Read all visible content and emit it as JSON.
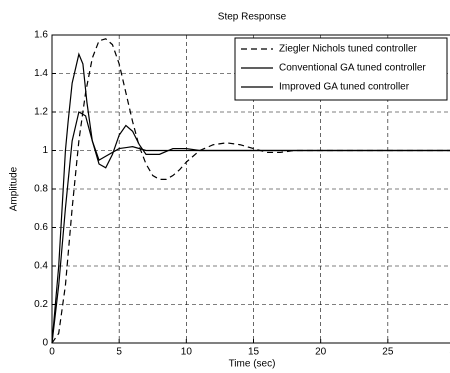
{
  "chart_data": {
    "type": "line",
    "title": "Step Response",
    "xlabel": "Time (sec)",
    "ylabel": "Amplitude",
    "xlim": [
      0,
      30
    ],
    "xticks": [
      0,
      5,
      10,
      15,
      20,
      25,
      30
    ],
    "ylim": [
      0,
      1.6
    ],
    "yticks": [
      0,
      0.2,
      0.4,
      0.6,
      0.8,
      1,
      1.2,
      1.4,
      1.6
    ],
    "grid": true,
    "legend": "upper right",
    "series": [
      {
        "name": "Ziegler Nichols tuned controller",
        "color": "#000000",
        "dash": "dashed",
        "x": [
          0,
          0.5,
          1,
          1.5,
          2,
          2.5,
          3,
          3.5,
          4,
          4.5,
          5,
          5.5,
          6,
          6.5,
          7,
          7.5,
          8,
          8.5,
          9,
          9.5,
          10,
          11,
          12,
          13,
          14,
          15,
          16,
          17,
          18,
          30
        ],
        "values": [
          0,
          0.05,
          0.3,
          0.7,
          1.05,
          1.3,
          1.48,
          1.57,
          1.58,
          1.55,
          1.45,
          1.3,
          1.15,
          1.02,
          0.93,
          0.87,
          0.85,
          0.85,
          0.87,
          0.9,
          0.94,
          1.0,
          1.03,
          1.04,
          1.03,
          1.01,
          0.99,
          0.99,
          1.0,
          1.0
        ]
      },
      {
        "name": "Conventional GA tuned controller",
        "color": "#000000",
        "dash": "solid",
        "x": [
          0,
          0.5,
          1,
          1.5,
          2,
          2.5,
          3,
          3.5,
          4,
          4.5,
          5,
          5.5,
          6,
          6.5,
          7,
          8,
          9,
          10,
          11,
          30
        ],
        "values": [
          0,
          0.3,
          0.7,
          1.05,
          1.2,
          1.18,
          1.05,
          0.93,
          0.91,
          0.98,
          1.08,
          1.13,
          1.1,
          1.03,
          0.98,
          0.98,
          1.01,
          1.01,
          1.0,
          1.0
        ]
      },
      {
        "name": "Improved GA tuned controller",
        "color": "#000000",
        "dash": "solid",
        "x": [
          0,
          0.5,
          1,
          1.2,
          1.5,
          2,
          2.3,
          2.6,
          3,
          3.5,
          4,
          5,
          6,
          7,
          8,
          30
        ],
        "values": [
          0,
          0.4,
          1.0,
          1.15,
          1.35,
          1.5,
          1.45,
          1.25,
          1.05,
          0.95,
          0.97,
          1.01,
          1.02,
          1.0,
          1.0,
          1.0
        ]
      }
    ]
  }
}
